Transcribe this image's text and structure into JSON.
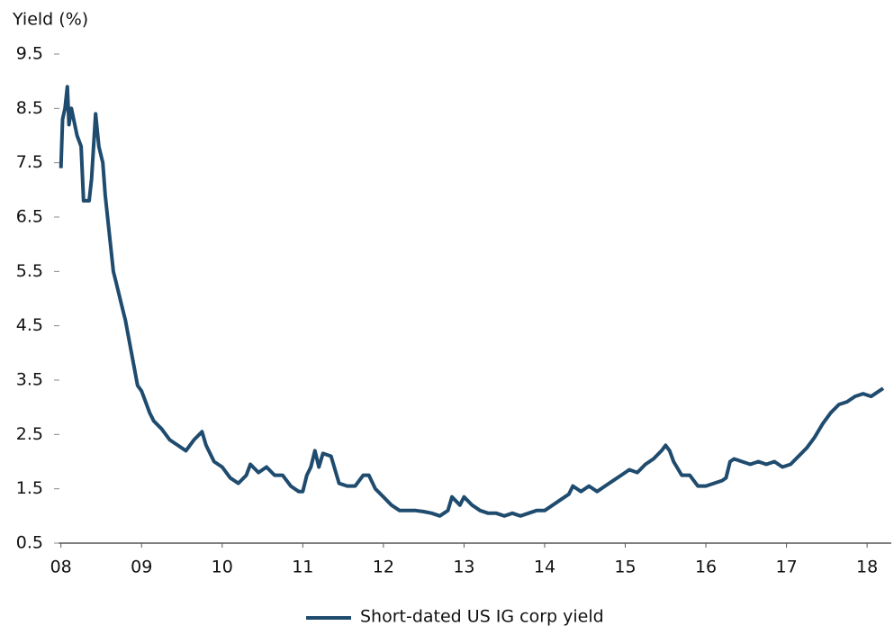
{
  "chart_data": {
    "type": "line",
    "y_label": "Yield (%)",
    "x": [
      2008.0,
      2008.02,
      2008.05,
      2008.08,
      2008.1,
      2008.13,
      2008.2,
      2008.25,
      2008.28,
      2008.35,
      2008.38,
      2008.43,
      2008.47,
      2008.52,
      2008.55,
      2008.6,
      2008.65,
      2008.7,
      2008.75,
      2008.8,
      2008.85,
      2008.9,
      2008.95,
      2009.0,
      2009.05,
      2009.1,
      2009.15,
      2009.25,
      2009.35,
      2009.45,
      2009.55,
      2009.65,
      2009.75,
      2009.8,
      2009.9,
      2010.0,
      2010.1,
      2010.2,
      2010.3,
      2010.35,
      2010.45,
      2010.55,
      2010.65,
      2010.75,
      2010.85,
      2010.95,
      2011.0,
      2011.05,
      2011.1,
      2011.15,
      2011.2,
      2011.25,
      2011.35,
      2011.45,
      2011.55,
      2011.65,
      2011.75,
      2011.82,
      2011.9,
      2012.0,
      2012.1,
      2012.2,
      2012.3,
      2012.4,
      2012.5,
      2012.6,
      2012.7,
      2012.8,
      2012.85,
      2012.95,
      2013.0,
      2013.1,
      2013.2,
      2013.3,
      2013.4,
      2013.5,
      2013.6,
      2013.7,
      2013.8,
      2013.9,
      2014.0,
      2014.1,
      2014.2,
      2014.3,
      2014.35,
      2014.45,
      2014.55,
      2014.65,
      2014.75,
      2014.85,
      2014.95,
      2015.05,
      2015.15,
      2015.25,
      2015.35,
      2015.45,
      2015.5,
      2015.55,
      2015.6,
      2015.7,
      2015.8,
      2015.9,
      2016.0,
      2016.1,
      2016.2,
      2016.25,
      2016.3,
      2016.35,
      2016.45,
      2016.55,
      2016.65,
      2016.75,
      2016.85,
      2016.95,
      2017.05,
      2017.15,
      2017.25,
      2017.35,
      2017.45,
      2017.55,
      2017.65,
      2017.75,
      2017.85,
      2017.95,
      2018.05,
      2018.15,
      2018.2
    ],
    "series": [
      {
        "name": "Short-dated US IG corp yield",
        "color": "#1f4b6e",
        "values": [
          7.4,
          8.3,
          8.5,
          8.9,
          8.2,
          8.5,
          8.0,
          7.8,
          6.8,
          6.8,
          7.2,
          8.4,
          7.8,
          7.5,
          6.9,
          6.2,
          5.5,
          5.2,
          4.9,
          4.6,
          4.2,
          3.8,
          3.4,
          3.3,
          3.1,
          2.9,
          2.75,
          2.6,
          2.4,
          2.3,
          2.2,
          2.4,
          2.55,
          2.3,
          2.0,
          1.9,
          1.7,
          1.6,
          1.75,
          1.95,
          1.8,
          1.9,
          1.75,
          1.75,
          1.55,
          1.45,
          1.45,
          1.75,
          1.9,
          2.2,
          1.9,
          2.15,
          2.1,
          1.6,
          1.55,
          1.55,
          1.75,
          1.75,
          1.5,
          1.35,
          1.2,
          1.1,
          1.1,
          1.1,
          1.08,
          1.05,
          1.0,
          1.1,
          1.35,
          1.2,
          1.35,
          1.2,
          1.1,
          1.05,
          1.05,
          1.0,
          1.05,
          1.0,
          1.05,
          1.1,
          1.1,
          1.2,
          1.3,
          1.4,
          1.55,
          1.45,
          1.55,
          1.45,
          1.55,
          1.65,
          1.75,
          1.85,
          1.8,
          1.95,
          2.05,
          2.2,
          2.3,
          2.2,
          2.0,
          1.75,
          1.75,
          1.55,
          1.55,
          1.6,
          1.65,
          1.7,
          2.0,
          2.05,
          2.0,
          1.95,
          2.0,
          1.95,
          2.0,
          1.9,
          1.95,
          2.1,
          2.25,
          2.45,
          2.7,
          2.9,
          3.05,
          3.1,
          3.2,
          3.25,
          3.2,
          3.3,
          3.35
        ]
      }
    ],
    "xlim": [
      2007.97,
      2018.3
    ],
    "xticks": [
      {
        "value": 2008,
        "label": "08"
      },
      {
        "value": 2009,
        "label": "09"
      },
      {
        "value": 2010,
        "label": "10"
      },
      {
        "value": 2011,
        "label": "11"
      },
      {
        "value": 2012,
        "label": "12"
      },
      {
        "value": 2013,
        "label": "13"
      },
      {
        "value": 2014,
        "label": "14"
      },
      {
        "value": 2015,
        "label": "15"
      },
      {
        "value": 2016,
        "label": "16"
      },
      {
        "value": 2017,
        "label": "17"
      },
      {
        "value": 2018,
        "label": "18"
      }
    ],
    "ylim": [
      0.5,
      9.5
    ],
    "yticks": [
      0.5,
      1.5,
      2.5,
      3.5,
      4.5,
      5.5,
      6.5,
      7.5,
      8.5,
      9.5
    ],
    "legend": "bottom"
  }
}
